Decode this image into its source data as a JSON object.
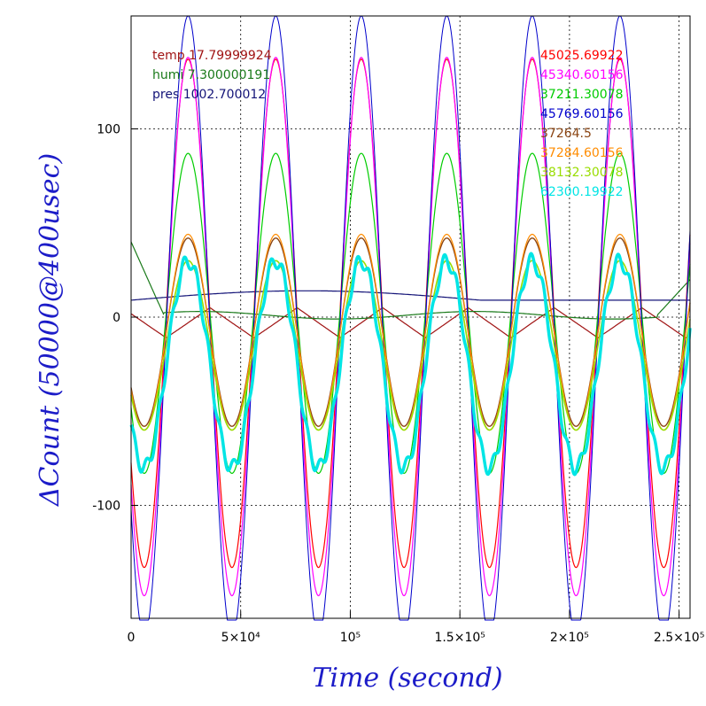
{
  "chart_data": {
    "type": "line",
    "title": "",
    "xlabel": "Time (second)",
    "ylabel": "ΔCount (50000@400usec)",
    "xlim": [
      0,
      255000
    ],
    "ylim": [
      -160,
      160
    ],
    "grid": true,
    "grid_style": "dotted",
    "x_ticks": [
      {
        "value": 0,
        "label": "0"
      },
      {
        "value": 50000,
        "label": "5×10⁴"
      },
      {
        "value": 100000,
        "label": "10⁵"
      },
      {
        "value": 150000,
        "label": "1.5×10⁵"
      },
      {
        "value": 200000,
        "label": "2×10⁵"
      },
      {
        "value": 250000,
        "label": "2.5×10⁵"
      }
    ],
    "y_ticks": [
      {
        "value": -100,
        "label": "-100"
      },
      {
        "value": 0,
        "label": "0"
      },
      {
        "value": 100,
        "label": "100"
      }
    ],
    "legend_left": [
      {
        "label": "temp 17.79999924",
        "color": "#a01414"
      },
      {
        "label": "humi 7.300000191",
        "color": "#1a7a1a"
      },
      {
        "label": "pres 1002.700012",
        "color": "#141478"
      }
    ],
    "legend_right": [
      {
        "label": "45025.69922",
        "color": "#ff0000"
      },
      {
        "label": "45340.60156",
        "color": "#ff00ff"
      },
      {
        "label": "37211.30078",
        "color": "#00cc00"
      },
      {
        "label": "45769.60156",
        "color": "#0000cc"
      },
      {
        "label": "37264.5",
        "color": "#8b4513"
      },
      {
        "label": "37284.60156",
        "color": "#ff8c00"
      },
      {
        "label": "38132.30078",
        "color": "#99dd00"
      },
      {
        "label": "62300.19922",
        "color": "#00e5e5"
      }
    ],
    "oscillation": {
      "period_seconds": 40000,
      "peak_times": [
        26000,
        66000,
        105000,
        144000,
        183000,
        223000
      ],
      "end_time": 255000
    },
    "series": [
      {
        "key": "ch1",
        "color": "#ff0000",
        "amplitude": 135,
        "offset": 2,
        "width": 1.2
      },
      {
        "key": "ch2",
        "color": "#ff00ff",
        "amplitude": 143,
        "offset": -5,
        "width": 1.2
      },
      {
        "key": "ch3",
        "color": "#00cc00",
        "amplitude": 85,
        "offset": 2,
        "width": 1.2
      },
      {
        "key": "ch4",
        "color": "#0000cc",
        "amplitude": 165,
        "offset": -5,
        "width": 1.0
      },
      {
        "key": "ch5",
        "color": "#8b4513",
        "amplitude": 50,
        "offset": -8,
        "width": 1.4
      },
      {
        "key": "ch6",
        "color": "#ff8c00",
        "amplitude": 52,
        "offset": -8,
        "width": 1.2
      },
      {
        "key": "ch7",
        "color": "#99dd00",
        "amplitude": 45,
        "offset": -15,
        "width": 1.6
      },
      {
        "key": "ch8",
        "color": "#00e5e5",
        "amplitude": 55,
        "offset": -25,
        "width": 3.5
      }
    ],
    "env_series": [
      {
        "key": "temp",
        "color": "#a01414",
        "shape": "triangle",
        "amplitude": 8,
        "offset": -3
      },
      {
        "key": "humi",
        "color": "#1a7a1a",
        "shape": "flat",
        "start": 40,
        "level": 1,
        "end": 20
      },
      {
        "key": "pres",
        "color": "#141478",
        "shape": "bump",
        "start": 9,
        "peak": 14,
        "end": 0
      }
    ]
  }
}
